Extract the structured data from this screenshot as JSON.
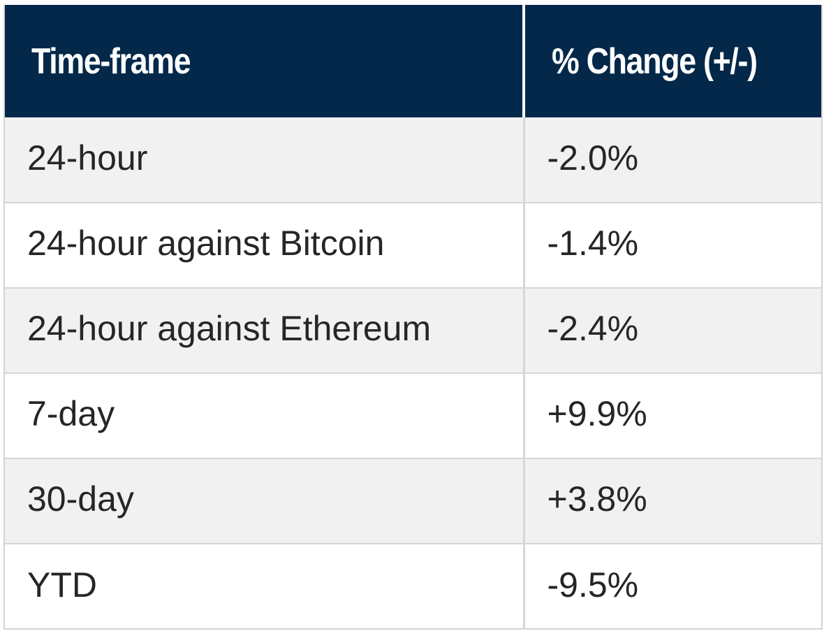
{
  "chart_data": {
    "type": "table",
    "columns": [
      "Time-frame",
      "% Change (+/-)"
    ],
    "rows": [
      {
        "timeframe": "24-hour",
        "change": "-2.0%"
      },
      {
        "timeframe": "24-hour against Bitcoin",
        "change": "-1.4%"
      },
      {
        "timeframe": "24-hour against Ethereum",
        "change": "-2.4%"
      },
      {
        "timeframe": "7-day",
        "change": "+9.9%"
      },
      {
        "timeframe": "30-day",
        "change": "+3.8%"
      },
      {
        "timeframe": "YTD",
        "change": "-9.5%"
      }
    ],
    "colors": {
      "header_background": "#03284a",
      "header_text": "#ffffff",
      "row_alt_background": "#f1f1f1",
      "row_background": "#ffffff",
      "cell_text": "#262626"
    }
  }
}
